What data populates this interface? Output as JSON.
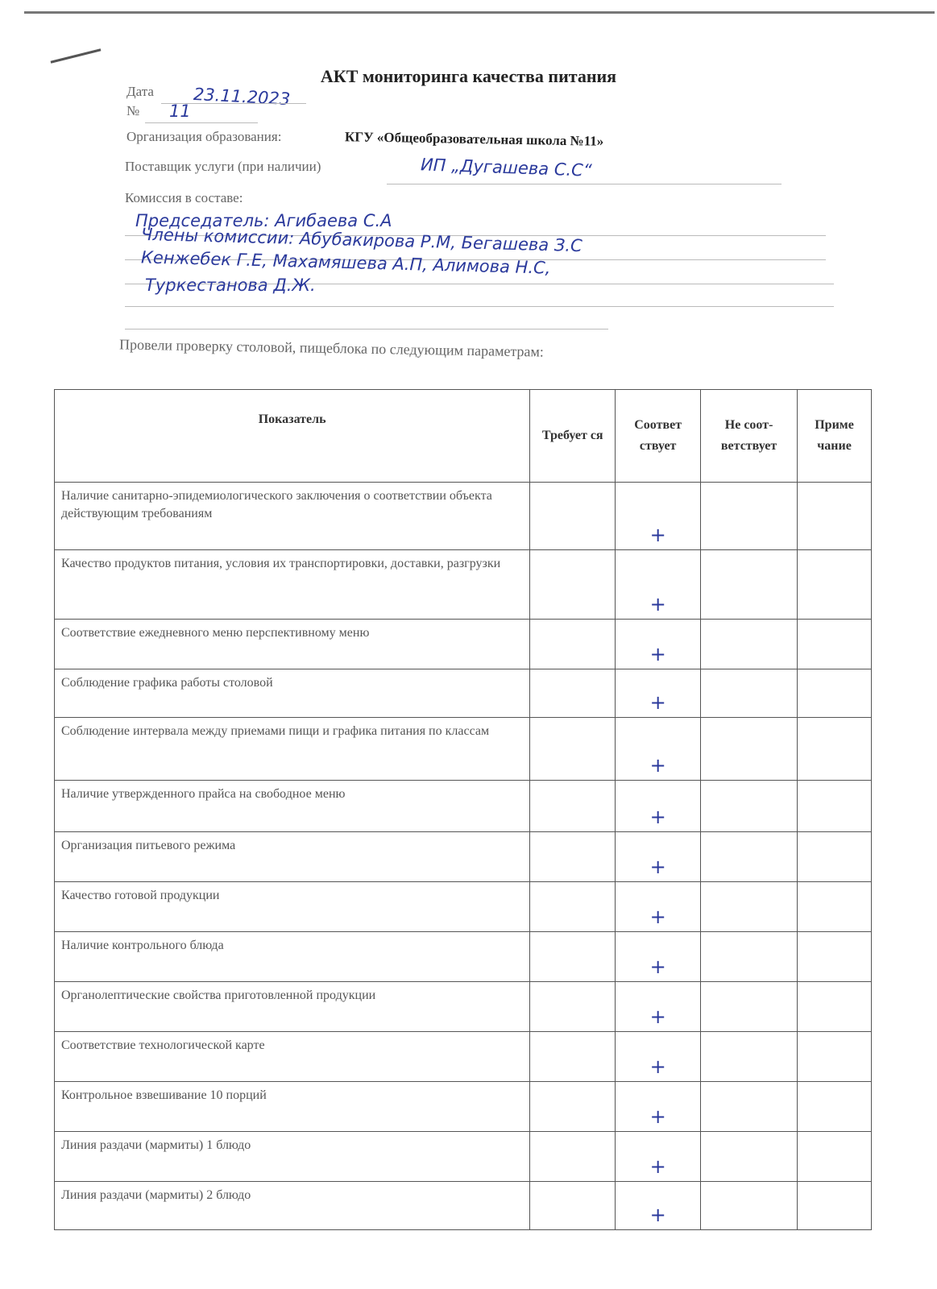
{
  "title": "АКТ мониторинга качества питания",
  "date": {
    "label": "Дата",
    "value": "23.11.2023"
  },
  "number": {
    "label": "№",
    "value": "11"
  },
  "organization": {
    "label": "Организация образования:",
    "value": "КГУ «Общеобразовательная школа №11»"
  },
  "supplier": {
    "label": "Поставщик услуги (при наличии)",
    "value": "ИП „Дугашева С.С“"
  },
  "commission": {
    "label": "Комиссия в составе:",
    "lines": [
      "Председатель: Агибаева С.А",
      "Члены комиссии: Абубакирова Р.М, Бегашева З.С",
      "Кенжебек Г.Е, Махамяшева А.П, Алимова Н.С,",
      "Туркестанова Д.Ж."
    ]
  },
  "intro": "Провели проверку столовой, пищеблока по следующим параметрам:",
  "table": {
    "headers": [
      "Показатель",
      "Требуется",
      "Соответствует",
      "Не соответствует",
      "Примечание"
    ],
    "header_display": [
      "Показатель",
      "Требует ся",
      "Соответ ствует",
      "Не соот- ветствует",
      "Приме чание"
    ],
    "rows": [
      {
        "indicator": "Наличие санитарно-эпидемиологического заключения о соответствии объекта действующим требованиям",
        "required": "",
        "complies": "+",
        "not_complies": "",
        "note": ""
      },
      {
        "indicator": "Качество продуктов питания, условия их транспортировки, доставки, разгрузки",
        "required": "",
        "complies": "+",
        "not_complies": "",
        "note": ""
      },
      {
        "indicator": "Соответствие ежедневного меню перспективному меню",
        "required": "",
        "complies": "+",
        "not_complies": "",
        "note": ""
      },
      {
        "indicator": "Соблюдение графика работы столовой",
        "required": "",
        "complies": "+",
        "not_complies": "",
        "note": ""
      },
      {
        "indicator": "Соблюдение интервала между приемами пищи и графика питания по классам",
        "required": "",
        "complies": "+",
        "not_complies": "",
        "note": ""
      },
      {
        "indicator": "Наличие утвержденного прайса на свободное меню",
        "required": "",
        "complies": "+",
        "not_complies": "",
        "note": ""
      },
      {
        "indicator": "Организация питьевого режима",
        "required": "",
        "complies": "+",
        "not_complies": "",
        "note": ""
      },
      {
        "indicator": "Качество готовой продукции",
        "required": "",
        "complies": "+",
        "not_complies": "",
        "note": ""
      },
      {
        "indicator": "Наличие контрольного блюда",
        "required": "",
        "complies": "+",
        "not_complies": "",
        "note": ""
      },
      {
        "indicator": "Органолептические свойства приготовленной продукции",
        "required": "",
        "complies": "+",
        "not_complies": "",
        "note": ""
      },
      {
        "indicator": "Соответствие технологической карте",
        "required": "",
        "complies": "+",
        "not_complies": "",
        "note": ""
      },
      {
        "indicator": "Контрольное взвешивание 10 порций",
        "required": "",
        "complies": "+",
        "not_complies": "",
        "note": ""
      },
      {
        "indicator": "Линия раздачи (мармиты) 1 блюдо",
        "required": "",
        "complies": "+",
        "not_complies": "",
        "note": ""
      },
      {
        "indicator": "Линия раздачи (мармиты) 2 блюдо",
        "required": "",
        "complies": "+",
        "not_complies": "",
        "note": ""
      }
    ]
  },
  "colors": {
    "ink": "#2b3a9c",
    "print": "#555555"
  }
}
